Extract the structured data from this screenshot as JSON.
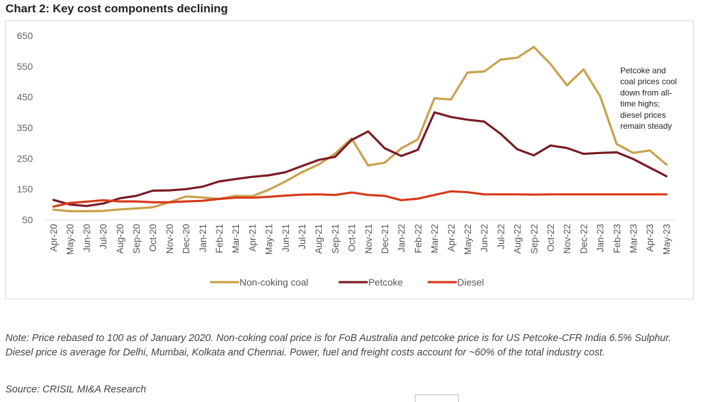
{
  "title": "Chart 2: Key cost components declining",
  "note": "Note: Price rebased to 100 as of January 2020. Non-coking coal price is for FoB Australia and petcoke price is for US Petcoke-CFR India 6.5% Sulphur. Diesel price is average for Delhi, Mumbai, Kolkata and Chennai. Power, fuel and freight costs account for ~60% of the total industry cost.",
  "source": "Source: CRISIL MI&A Research",
  "chart_data": {
    "type": "line",
    "title": "",
    "xlabel": "",
    "ylabel": "",
    "ylim": [
      50,
      650
    ],
    "yticks": [
      50,
      150,
      250,
      350,
      450,
      550,
      650
    ],
    "grid": false,
    "legend_position": "bottom",
    "categories": [
      "Apr-20",
      "May-20",
      "Jun-20",
      "Jul-20",
      "Aug-20",
      "Sep-20",
      "Oct-20",
      "Nov-20",
      "Dec-20",
      "Jan-21",
      "Feb-21",
      "Mar-21",
      "Apr-21",
      "May-21",
      "Jun-21",
      "Jul-21",
      "Aug-21",
      "Sep-21",
      "Oct-21",
      "Nov-21",
      "Dec-21",
      "Jan-22",
      "Feb-22",
      "Mar-22",
      "Apr-22",
      "May-22",
      "Jun-22",
      "Jul-22",
      "Aug-22",
      "Sep-22",
      "Oct-22",
      "Nov-22",
      "Dec-22",
      "Jan-23",
      "Feb-23",
      "Mar-23",
      "Apr-23",
      "May-23"
    ],
    "series": [
      {
        "name": "Non-coking coal",
        "color": "#c9a04b",
        "values": [
          83,
          78,
          78,
          79,
          84,
          87,
          91,
          107,
          126,
          123,
          118,
          128,
          127,
          148,
          175,
          205,
          230,
          265,
          315,
          227,
          236,
          283,
          312,
          446,
          442,
          530,
          533,
          572,
          578,
          613,
          558,
          488,
          540,
          453,
          297,
          268,
          276,
          230
        ]
      },
      {
        "name": "Petcoke",
        "color": "#7a1c24",
        "values": [
          115,
          100,
          95,
          103,
          120,
          128,
          145,
          146,
          150,
          158,
          175,
          183,
          190,
          195,
          205,
          225,
          245,
          255,
          310,
          338,
          283,
          258,
          278,
          400,
          385,
          376,
          370,
          330,
          280,
          260,
          292,
          284,
          265,
          268,
          270,
          248,
          220,
          192
        ]
      },
      {
        "name": "Diesel",
        "color": "#d63a1c",
        "values": [
          93,
          105,
          109,
          114,
          110,
          110,
          107,
          107,
          110,
          112,
          118,
          122,
          122,
          125,
          129,
          132,
          133,
          131,
          139,
          131,
          128,
          114,
          119,
          131,
          143,
          140,
          133,
          133,
          133,
          132,
          133,
          133,
          133,
          133,
          133,
          133,
          133,
          133
        ]
      }
    ],
    "annotation": [
      "Petcoke and",
      "coal prices cool",
      "down from all-",
      "time highs;",
      "diesel prices",
      "remain steady"
    ]
  }
}
